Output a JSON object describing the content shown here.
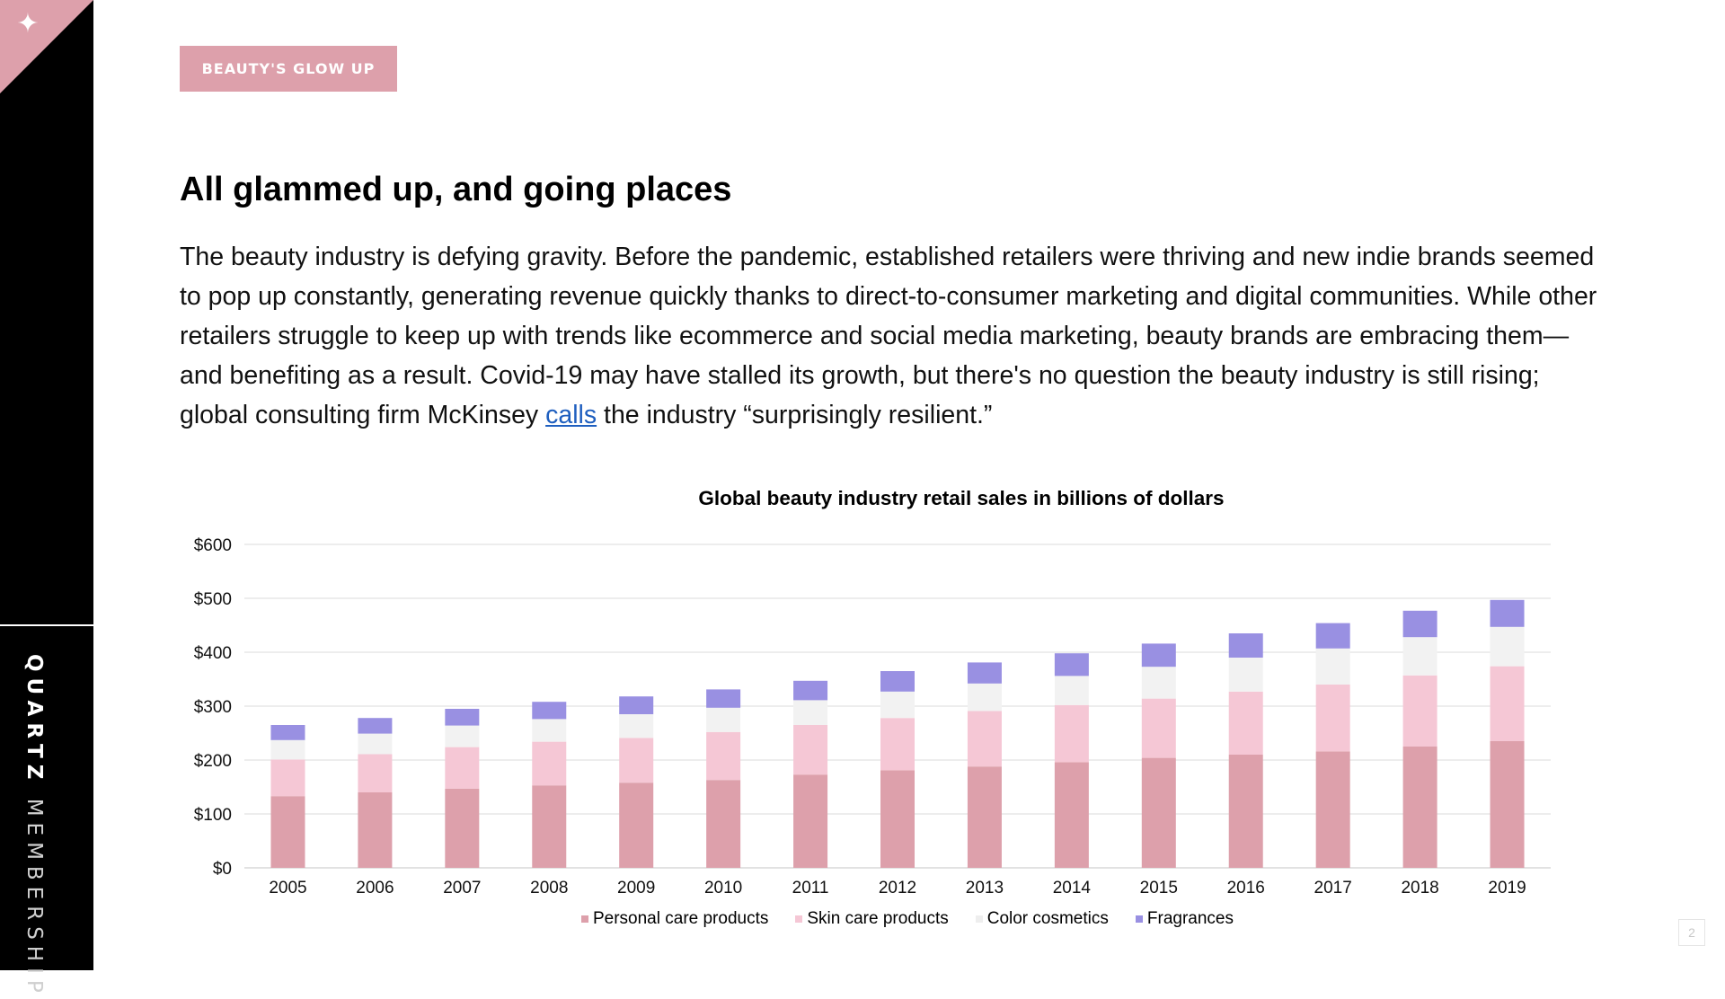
{
  "sidebar": {
    "icon": "sparkle-icon",
    "label_bold": "QUARTZ",
    "label_light": "MEMBERSHIP"
  },
  "header": {
    "tag": "BEAUTY'S GLOW UP",
    "title": "All glammed up, and going places"
  },
  "body": {
    "text_before_link": "The beauty industry is defying gravity. Before the pandemic, established retailers were thriving and new indie brands seemed to pop up constantly, generating revenue quickly thanks to direct-to-consumer marketing and digital communities. While other retailers struggle to keep up with trends like ecommerce and social media marketing, beauty brands are embracing them—and benefiting as a result. Covid-19 may have stalled its growth, but there's no question the beauty industry is still rising; global consulting firm McKinsey ",
    "link_text": "calls",
    "text_after_link": " the industry “surprisingly resilient.”"
  },
  "chart_data": {
    "type": "bar",
    "stacked": true,
    "title": "Global beauty industry retail sales in billions of dollars",
    "xlabel": "",
    "ylabel": "",
    "categories": [
      "2005",
      "2006",
      "2007",
      "2008",
      "2009",
      "2010",
      "2011",
      "2012",
      "2013",
      "2014",
      "2015",
      "2016",
      "2017",
      "2018",
      "2019"
    ],
    "y_ticks": [
      "$0",
      "$100",
      "$200",
      "$300",
      "$400",
      "$500",
      "$600"
    ],
    "ylim": [
      0,
      600
    ],
    "grid": true,
    "legend_position": "bottom",
    "series": [
      {
        "name": "Personal care products",
        "color": "#dda0ab",
        "values": [
          133,
          140,
          147,
          153,
          158,
          163,
          173,
          181,
          188,
          196,
          204,
          210,
          216,
          225,
          235
        ]
      },
      {
        "name": "Skin care products",
        "color": "#f5c7d5",
        "values": [
          68,
          71,
          77,
          81,
          83,
          89,
          92,
          97,
          103,
          106,
          110,
          117,
          124,
          132,
          139
        ]
      },
      {
        "name": "Color cosmetics",
        "color": "#f2f2f2",
        "values": [
          36,
          38,
          40,
          42,
          44,
          45,
          46,
          49,
          51,
          54,
          59,
          63,
          67,
          71,
          73
        ]
      },
      {
        "name": "Fragrances",
        "color": "#9990e2",
        "values": [
          28,
          29,
          31,
          32,
          33,
          34,
          36,
          38,
          39,
          42,
          43,
          45,
          47,
          49,
          50
        ]
      }
    ]
  },
  "page_number": "2"
}
